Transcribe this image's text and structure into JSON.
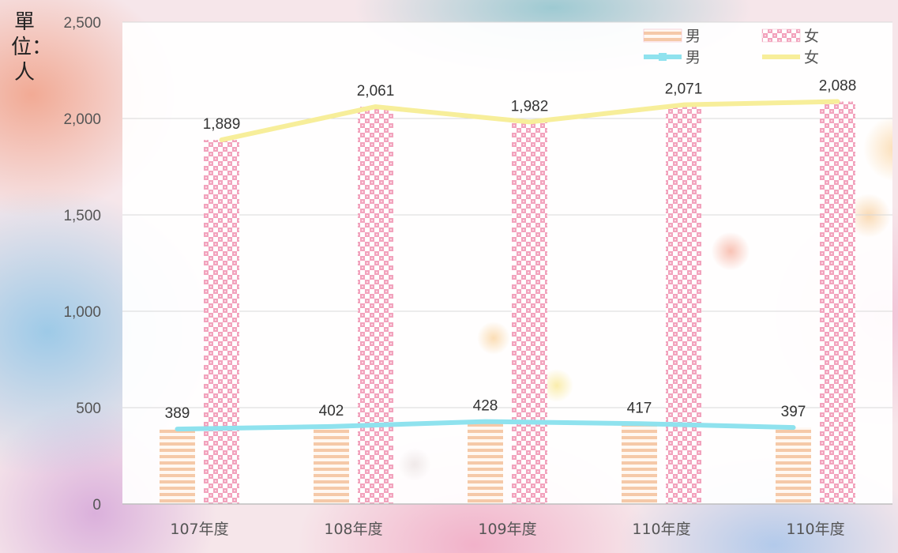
{
  "chart_data": {
    "type": "bar",
    "title": "",
    "ylabel": "單位：人",
    "xlabel": "",
    "categories": [
      "107年度",
      "108年度",
      "109年度",
      "110年度",
      "110年度"
    ],
    "ylim": [
      0,
      2500
    ],
    "yticks": [
      "0",
      "500",
      "1,000",
      "1,500",
      "2,000",
      "2,500"
    ],
    "grid": true,
    "legend_position": "top-right",
    "series": [
      {
        "name": "男",
        "kind": "bar",
        "color": "#f5c9a8",
        "values": [
          389,
          402,
          428,
          417,
          397
        ],
        "labels": [
          "389",
          "402",
          "428",
          "417",
          "397"
        ]
      },
      {
        "name": "女",
        "kind": "bar",
        "color": "#f2a3bd",
        "values": [
          1889,
          2061,
          1982,
          2071,
          2088
        ],
        "labels": [
          "1,889",
          "2,061",
          "1,982",
          "2,071",
          "2,088"
        ]
      },
      {
        "name": "男",
        "kind": "line",
        "color": "#8fe2ee",
        "values": [
          389,
          402,
          428,
          417,
          397
        ]
      },
      {
        "name": "女",
        "kind": "line",
        "color": "#f7ee9a",
        "values": [
          1889,
          2061,
          1982,
          2071,
          2088
        ]
      }
    ]
  }
}
